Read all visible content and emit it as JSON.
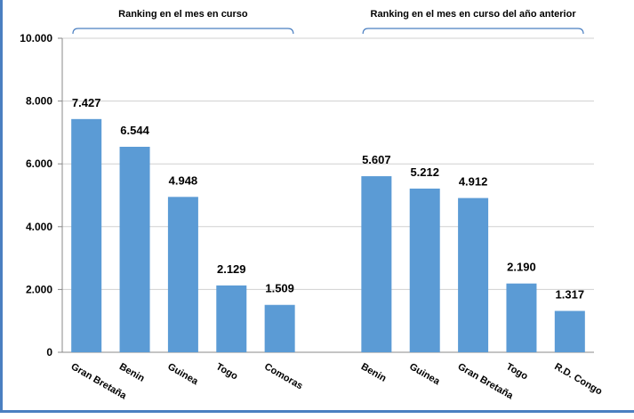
{
  "chart_data": {
    "type": "bar",
    "ylim": [
      0,
      10000
    ],
    "yticks": [
      "0",
      "2.000",
      "4.000",
      "6.000",
      "8.000",
      "10.000"
    ],
    "ytick_values": [
      0,
      2000,
      4000,
      6000,
      8000,
      10000
    ],
    "grid": true,
    "legend": "none",
    "color": "#5b9bd5",
    "groups": [
      {
        "title": "Ranking en el mes en curso",
        "categories": [
          "Gran Bretaña",
          "Benin",
          "Guinea",
          "Togo",
          "Comoras"
        ],
        "values": [
          7427,
          6544,
          4948,
          2129,
          1509
        ],
        "labels": [
          "7.427",
          "6.544",
          "4.948",
          "2.129",
          "1.509"
        ]
      },
      {
        "title": "Ranking en el mes en curso del año anterior",
        "categories": [
          "Benin",
          "Guinea",
          "Gran Bretaña",
          "Togo",
          "R.D. Congo"
        ],
        "values": [
          5607,
          5212,
          4912,
          2190,
          1317
        ],
        "labels": [
          "5.607",
          "5.212",
          "4.912",
          "2.190",
          "1.317"
        ]
      }
    ]
  }
}
